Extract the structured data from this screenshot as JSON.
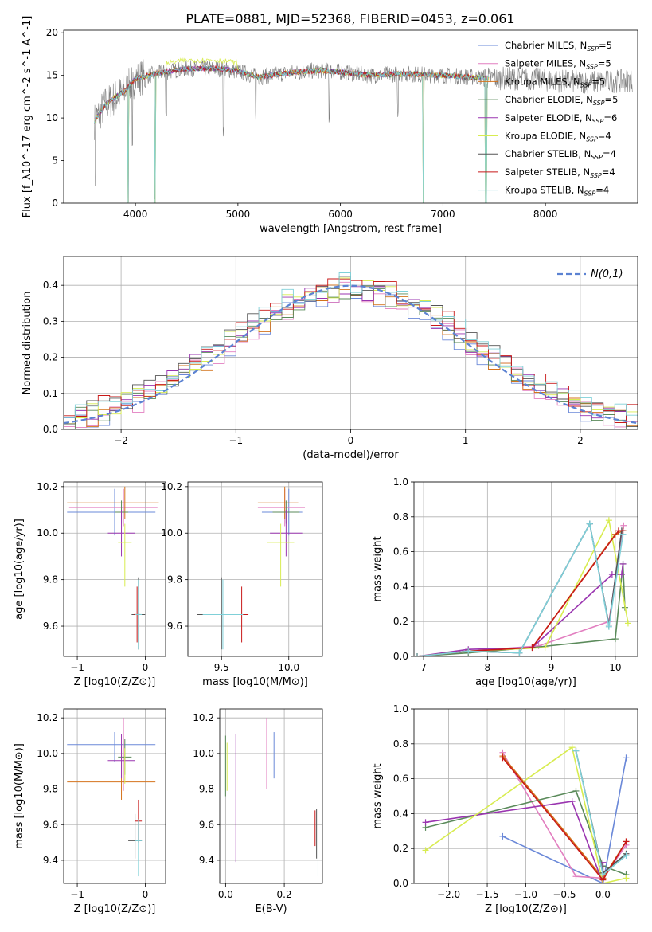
{
  "figure": {
    "title": "PLATE=0881, MJD=52368, FIBERID=0453, z=0.061"
  },
  "colors": [
    "#6a88d8",
    "#e27fc0",
    "#d4731c",
    "#5a8a5a",
    "#9a35b0",
    "#d8ec50",
    "#555555",
    "#c81818",
    "#7fd0d8"
  ],
  "chart_data": [
    {
      "id": "spectrum",
      "type": "line",
      "xlabel": "wavelength [Angstrom, rest frame]",
      "ylabel": "Flux [f_λ10^-17 erg cm^-2 s^-1 A^-1]",
      "xlim": [
        3300,
        8900
      ],
      "ylim": [
        0,
        20.3
      ],
      "xticks": [
        4000,
        5000,
        6000,
        7000,
        8000
      ],
      "yticks": [
        0,
        5,
        10,
        15,
        20
      ],
      "legend_position": "right",
      "legend": [
        {
          "name": "Chabrier MILES",
          "nssp": "5"
        },
        {
          "name": "Salpeter MILES",
          "nssp": "5"
        },
        {
          "name": "Kroupa MILES",
          "nssp": "5"
        },
        {
          "name": "Chabrier ELODIE",
          "nssp": "5"
        },
        {
          "name": "Salpeter ELODIE",
          "nssp": "6"
        },
        {
          "name": "Kroupa ELODIE",
          "nssp": "4"
        },
        {
          "name": "Chabrier STELIB",
          "nssp": "4"
        },
        {
          "name": "Salpeter STELIB",
          "nssp": "4"
        },
        {
          "name": "Kroupa STELIB",
          "nssp": "4"
        }
      ],
      "continuum": [
        [
          3600,
          9.6
        ],
        [
          3700,
          11.5
        ],
        [
          3800,
          12.4
        ],
        [
          3900,
          13.2
        ],
        [
          4000,
          14.6
        ],
        [
          4200,
          15.2
        ],
        [
          4500,
          15.8
        ],
        [
          4800,
          15.8
        ],
        [
          5000,
          15.5
        ],
        [
          5200,
          14.8
        ],
        [
          5500,
          15.3
        ],
        [
          5800,
          15.6
        ],
        [
          6000,
          15.4
        ],
        [
          6300,
          15.0
        ],
        [
          6600,
          15.2
        ],
        [
          7000,
          15.0
        ],
        [
          7400,
          14.7
        ],
        [
          7800,
          14.6
        ],
        [
          8200,
          14.3
        ],
        [
          8500,
          14.2
        ],
        [
          8800,
          14.4
        ]
      ],
      "dips": [
        [
          3610,
          1.6
        ],
        [
          3930,
          0.0
        ],
        [
          3970,
          5.0
        ],
        [
          4190,
          0.0
        ],
        [
          4300,
          9.5
        ],
        [
          4860,
          7.5
        ],
        [
          5175,
          9.0
        ],
        [
          5890,
          9.0
        ],
        [
          6560,
          10.0
        ],
        [
          6810,
          0.0
        ],
        [
          7420,
          0.0
        ]
      ]
    },
    {
      "id": "residuals",
      "type": "histogram",
      "xlabel": "(data-model)/error",
      "ylabel": "Normed distribution",
      "xlim": [
        -2.5,
        2.5
      ],
      "ylim": [
        0,
        0.48
      ],
      "xticks": [
        -2,
        -1,
        0,
        1,
        2
      ],
      "yticks": [
        0.0,
        0.1,
        0.2,
        0.3,
        0.4
      ],
      "grid": true,
      "legend_position": "top-right",
      "reference_curve": {
        "label": "N(0,1)",
        "mean": 0,
        "sigma": 1
      },
      "bin_width": 0.1,
      "bin_start": -2.5
    },
    {
      "id": "age_vs_Z",
      "type": "scatter",
      "xlabel": "Z [log10(Z/Z⊙)]",
      "ylabel": "age [log10(age/yr)]",
      "xlim": [
        -1.2,
        0.3
      ],
      "ylim": [
        9.47,
        10.22
      ],
      "xticks": [
        -1,
        0
      ],
      "yticks": [
        9.6,
        9.8,
        10.0,
        10.2
      ],
      "grid": true,
      "points": [
        {
          "x": -0.45,
          "y": 10.09,
          "xerr": [
            0.7,
            0.6
          ],
          "yerr": [
            0.1,
            0.1
          ]
        },
        {
          "x": -0.32,
          "y": 10.11,
          "xerr": [
            0.8,
            0.5
          ],
          "yerr": [
            0.08,
            0.08
          ]
        },
        {
          "x": -0.3,
          "y": 10.13,
          "xerr": [
            0.85,
            0.5
          ],
          "yerr": [
            0.07,
            0.07
          ]
        },
        {
          "x": -0.35,
          "y": 10.09,
          "xerr": [
            0.1,
            0.1
          ],
          "yerr": [
            0.05,
            0.05
          ]
        },
        {
          "x": -0.35,
          "y": 10.0,
          "xerr": [
            0.2,
            0.2
          ],
          "yerr": [
            0.1,
            0.1
          ]
        },
        {
          "x": -0.3,
          "y": 9.96,
          "xerr": [
            0.1,
            0.1
          ],
          "yerr": [
            0.19,
            0.08
          ]
        },
        {
          "x": -0.1,
          "y": 9.65,
          "xerr": [
            0.1,
            0.1
          ],
          "yerr": [
            0.15,
            0.16
          ]
        },
        {
          "x": -0.12,
          "y": 9.65,
          "xerr": [
            0.05,
            0.05
          ],
          "yerr": [
            0.12,
            0.12
          ]
        },
        {
          "x": -0.1,
          "y": 9.65,
          "xerr": [
            0.05,
            0.05
          ],
          "yerr": [
            0.15,
            0.15
          ]
        }
      ]
    },
    {
      "id": "age_vs_mass",
      "type": "scatter",
      "xlabel": "mass [log10(M/M⊙)]",
      "ylabel": "",
      "xlim": [
        9.25,
        10.25
      ],
      "ylim": [
        9.47,
        10.22
      ],
      "xticks": [
        9.5,
        10.0
      ],
      "yticks": [
        9.6,
        9.8,
        10.0,
        10.2
      ],
      "grid": true,
      "points": [
        {
          "x": 10.0,
          "y": 10.09,
          "xerr": [
            0.2,
            0.1
          ],
          "yerr": [
            0.1,
            0.1
          ]
        },
        {
          "x": 9.97,
          "y": 10.11,
          "xerr": [
            0.2,
            0.15
          ],
          "yerr": [
            0.08,
            0.08
          ]
        },
        {
          "x": 9.97,
          "y": 10.13,
          "xerr": [
            0.2,
            0.1
          ],
          "yerr": [
            0.07,
            0.07
          ]
        },
        {
          "x": 9.98,
          "y": 10.09,
          "xerr": [
            0.1,
            0.1
          ],
          "yerr": [
            0.05,
            0.05
          ]
        },
        {
          "x": 9.98,
          "y": 10.0,
          "xerr": [
            0.12,
            0.12
          ],
          "yerr": [
            0.1,
            0.1
          ]
        },
        {
          "x": 9.94,
          "y": 9.96,
          "xerr": [
            0.1,
            0.1
          ],
          "yerr": [
            0.19,
            0.08
          ]
        },
        {
          "x": 9.5,
          "y": 9.65,
          "xerr": [
            0.18,
            0.18
          ],
          "yerr": [
            0.15,
            0.16
          ]
        },
        {
          "x": 9.65,
          "y": 9.65,
          "xerr": [
            0.05,
            0.05
          ],
          "yerr": [
            0.12,
            0.12
          ]
        },
        {
          "x": 9.51,
          "y": 9.65,
          "xerr": [
            0.15,
            0.15
          ],
          "yerr": [
            0.15,
            0.15
          ]
        }
      ]
    },
    {
      "id": "weight_vs_age",
      "type": "line",
      "xlabel": "age [log10(age/yr)]",
      "ylabel": "mass weight",
      "xlim": [
        6.85,
        10.35
      ],
      "ylim": [
        0,
        1.0
      ],
      "xticks": [
        7,
        8,
        9,
        10
      ],
      "yticks": [
        0.0,
        0.2,
        0.4,
        0.6,
        0.8,
        1.0
      ],
      "grid": true,
      "series": [
        {
          "x": [
            6.9,
            7.7,
            8.5,
            9.6,
            9.9,
            10.1
          ],
          "y": [
            0.0,
            0.03,
            0.02,
            0.76,
            0.18,
            0.72
          ]
        },
        {
          "x": [
            6.9,
            7.7,
            8.8,
            9.9,
            10.13
          ],
          "y": [
            0.0,
            0.03,
            0.06,
            0.2,
            0.75
          ]
        },
        {
          "x": [
            6.9,
            7.7,
            8.7,
            10.0,
            10.12
          ],
          "y": [
            0.0,
            0.03,
            0.05,
            0.7,
            0.72
          ]
        },
        {
          "x": [
            6.9,
            7.7,
            8.7,
            10.0,
            10.12,
            10.15
          ],
          "y": [
            0.0,
            0.02,
            0.05,
            0.1,
            0.53,
            0.28
          ]
        },
        {
          "x": [
            6.9,
            7.7,
            8.7,
            9.95,
            10.1,
            10.12
          ],
          "y": [
            0.0,
            0.04,
            0.05,
            0.47,
            0.47,
            0.53
          ]
        },
        {
          "x": [
            6.9,
            7.7,
            8.9,
            9.9,
            10.2
          ],
          "y": [
            0.0,
            0.03,
            0.05,
            0.78,
            0.19
          ]
        },
        {
          "x": [
            6.9,
            7.7,
            8.5,
            9.6,
            9.9,
            10.1
          ],
          "y": [
            0.0,
            0.03,
            0.02,
            0.76,
            0.18,
            0.72
          ]
        },
        {
          "x": [
            6.9,
            7.7,
            8.7,
            10.05,
            10.12
          ],
          "y": [
            0.0,
            0.03,
            0.05,
            0.72,
            0.72
          ]
        },
        {
          "x": [
            6.9,
            7.7,
            8.5,
            9.6,
            9.9,
            10.12
          ],
          "y": [
            0.0,
            0.03,
            0.02,
            0.76,
            0.17,
            0.7
          ]
        }
      ]
    },
    {
      "id": "mass_vs_Z",
      "type": "scatter",
      "xlabel": "Z [log10(Z/Z⊙)]",
      "ylabel": "mass [log10(M/M⊙)]",
      "xlim": [
        -1.2,
        0.3
      ],
      "ylim": [
        9.27,
        10.25
      ],
      "xticks": [
        -1,
        0
      ],
      "yticks": [
        9.4,
        9.6,
        9.8,
        10.0,
        10.2
      ],
      "grid": true,
      "points": [
        {
          "x": -0.45,
          "y": 10.05,
          "xerr": [
            0.7,
            0.6
          ],
          "yerr": [
            0.1,
            0.07
          ]
        },
        {
          "x": -0.32,
          "y": 9.89,
          "xerr": [
            0.8,
            0.5
          ],
          "yerr": [
            0.1,
            0.31
          ]
        },
        {
          "x": -0.35,
          "y": 9.84,
          "xerr": [
            0.8,
            0.5
          ],
          "yerr": [
            0.1,
            0.2
          ]
        },
        {
          "x": -0.3,
          "y": 9.98,
          "xerr": [
            0.1,
            0.1
          ],
          "yerr": [
            0.1,
            0.1
          ]
        },
        {
          "x": -0.35,
          "y": 9.96,
          "xerr": [
            0.2,
            0.2
          ],
          "yerr": [
            0.1,
            0.15
          ]
        },
        {
          "x": -0.3,
          "y": 9.93,
          "xerr": [
            0.1,
            0.1
          ],
          "yerr": [
            0.1,
            0.1
          ]
        },
        {
          "x": -0.15,
          "y": 9.51,
          "xerr": [
            0.1,
            0.1
          ],
          "yerr": [
            0.1,
            0.15
          ]
        },
        {
          "x": -0.1,
          "y": 9.62,
          "xerr": [
            0.05,
            0.05
          ],
          "yerr": [
            0.12,
            0.12
          ]
        },
        {
          "x": -0.1,
          "y": 9.51,
          "xerr": [
            0.05,
            0.05
          ],
          "yerr": [
            0.2,
            0.12
          ]
        }
      ]
    },
    {
      "id": "mass_vs_EBV",
      "type": "scatter",
      "xlabel": "E(B-V)",
      "ylabel": "",
      "xlim": [
        -0.02,
        0.33
      ],
      "ylim": [
        9.27,
        10.25
      ],
      "xticks": [
        0.0,
        0.2
      ],
      "yticks": [
        9.4,
        9.6,
        9.8,
        10.0,
        10.2
      ],
      "grid": true,
      "points": [
        {
          "x": 0.165,
          "y": 9.98,
          "xerr": [
            0,
            0
          ],
          "yerr": [
            0.12,
            0.14
          ]
        },
        {
          "x": 0.14,
          "y": 10.0,
          "xerr": [
            0,
            0
          ],
          "yerr": [
            0.2,
            0.2
          ]
        },
        {
          "x": 0.155,
          "y": 9.91,
          "xerr": [
            0,
            0
          ],
          "yerr": [
            0.18,
            0.18
          ]
        },
        {
          "x": 0.0,
          "y": 9.9,
          "xerr": [
            0,
            0
          ],
          "yerr": [
            0.14,
            0.2
          ]
        },
        {
          "x": 0.035,
          "y": 9.75,
          "xerr": [
            0,
            0
          ],
          "yerr": [
            0.36,
            0.36
          ]
        },
        {
          "x": 0.005,
          "y": 9.94,
          "xerr": [
            0,
            0
          ],
          "yerr": [
            0.15,
            0.12
          ]
        },
        {
          "x": 0.31,
          "y": 9.55,
          "xerr": [
            0,
            0
          ],
          "yerr": [
            0.14,
            0.14
          ]
        },
        {
          "x": 0.305,
          "y": 9.58,
          "xerr": [
            0,
            0
          ],
          "yerr": [
            0.1,
            0.1
          ]
        },
        {
          "x": 0.315,
          "y": 9.47,
          "xerr": [
            0,
            0
          ],
          "yerr": [
            0.16,
            0.16
          ]
        }
      ]
    },
    {
      "id": "weight_vs_Z",
      "type": "line",
      "xlabel": "Z [log10(Z/Z⊙)]",
      "ylabel": "mass weight",
      "xlim": [
        -2.45,
        0.45
      ],
      "ylim": [
        0,
        1.0
      ],
      "xticks": [
        -2.0,
        -1.5,
        -1.0,
        -0.5,
        0.0
      ],
      "yticks": [
        0.0,
        0.2,
        0.4,
        0.6,
        0.8,
        1.0
      ],
      "grid": true,
      "series": [
        {
          "x": [
            -1.3,
            0.0,
            0.3
          ],
          "y": [
            0.27,
            0.0,
            0.72
          ]
        },
        {
          "x": [
            -1.3,
            -0.35,
            0.0,
            0.3
          ],
          "y": [
            0.75,
            0.04,
            0.03,
            0.22
          ]
        },
        {
          "x": [
            -1.3,
            0.0,
            0.3
          ],
          "y": [
            0.73,
            0.03,
            0.24
          ]
        },
        {
          "x": [
            -2.3,
            -0.35,
            0.0,
            0.3
          ],
          "y": [
            0.32,
            0.53,
            0.1,
            0.05
          ]
        },
        {
          "x": [
            -2.3,
            -0.4,
            0.0,
            0.0
          ],
          "y": [
            0.35,
            0.47,
            0.0,
            0.12
          ]
        },
        {
          "x": [
            -2.3,
            -0.4,
            0.0,
            0.3
          ],
          "y": [
            0.19,
            0.78,
            0.0,
            0.03
          ]
        },
        {
          "x": [
            -0.35,
            0.0,
            0.3
          ],
          "y": [
            0.76,
            0.06,
            0.17
          ]
        },
        {
          "x": [
            -1.3,
            0.0,
            0.3
          ],
          "y": [
            0.72,
            0.02,
            0.24
          ]
        },
        {
          "x": [
            -0.35,
            0.0,
            0.3
          ],
          "y": [
            0.76,
            0.05,
            0.16
          ]
        }
      ]
    }
  ]
}
